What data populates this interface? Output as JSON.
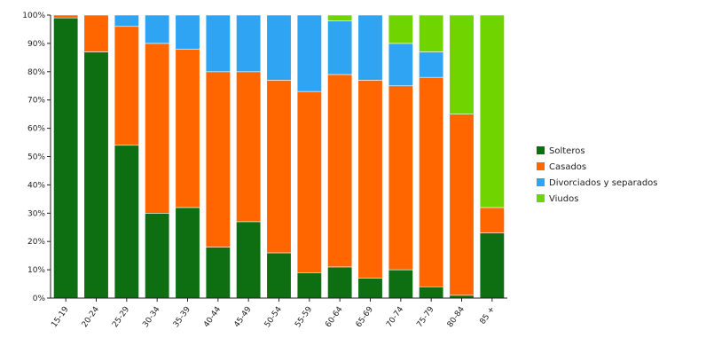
{
  "chart_data": {
    "type": "bar",
    "stacked": true,
    "normalized": true,
    "categories": [
      "15-19",
      "20-24",
      "25-29",
      "30-34",
      "35-39",
      "40-44",
      "45-49",
      "50-54",
      "55-59",
      "60-64",
      "65-69",
      "70-74",
      "75-79",
      "80-84",
      "85 +"
    ],
    "series": [
      {
        "name": "Solteros",
        "color": "#0d6e12",
        "values": [
          99,
          87,
          54,
          30,
          32,
          18,
          27,
          16,
          9,
          11,
          7,
          10,
          4,
          1,
          23
        ]
      },
      {
        "name": "Casados",
        "color": "#ff6600",
        "values": [
          1,
          13,
          42,
          60,
          56,
          62,
          53,
          61,
          64,
          68,
          70,
          65,
          74,
          64,
          9
        ]
      },
      {
        "name": "Divorciados y separados",
        "color": "#2fa4f2",
        "values": [
          0,
          0,
          4,
          10,
          12,
          20,
          20,
          23,
          27,
          19,
          23,
          15,
          9,
          0,
          0
        ]
      },
      {
        "name": "Viudos",
        "color": "#6fd400",
        "values": [
          0,
          0,
          0,
          0,
          0,
          0,
          0,
          0,
          0,
          2,
          0,
          10,
          13,
          35,
          68
        ]
      }
    ],
    "yticks": [
      "0%",
      "10%",
      "20%",
      "30%",
      "40%",
      "50%",
      "60%",
      "70%",
      "80%",
      "90%",
      "100%"
    ],
    "ylim": [
      0,
      100
    ],
    "legend_position": "right",
    "grid": false
  }
}
